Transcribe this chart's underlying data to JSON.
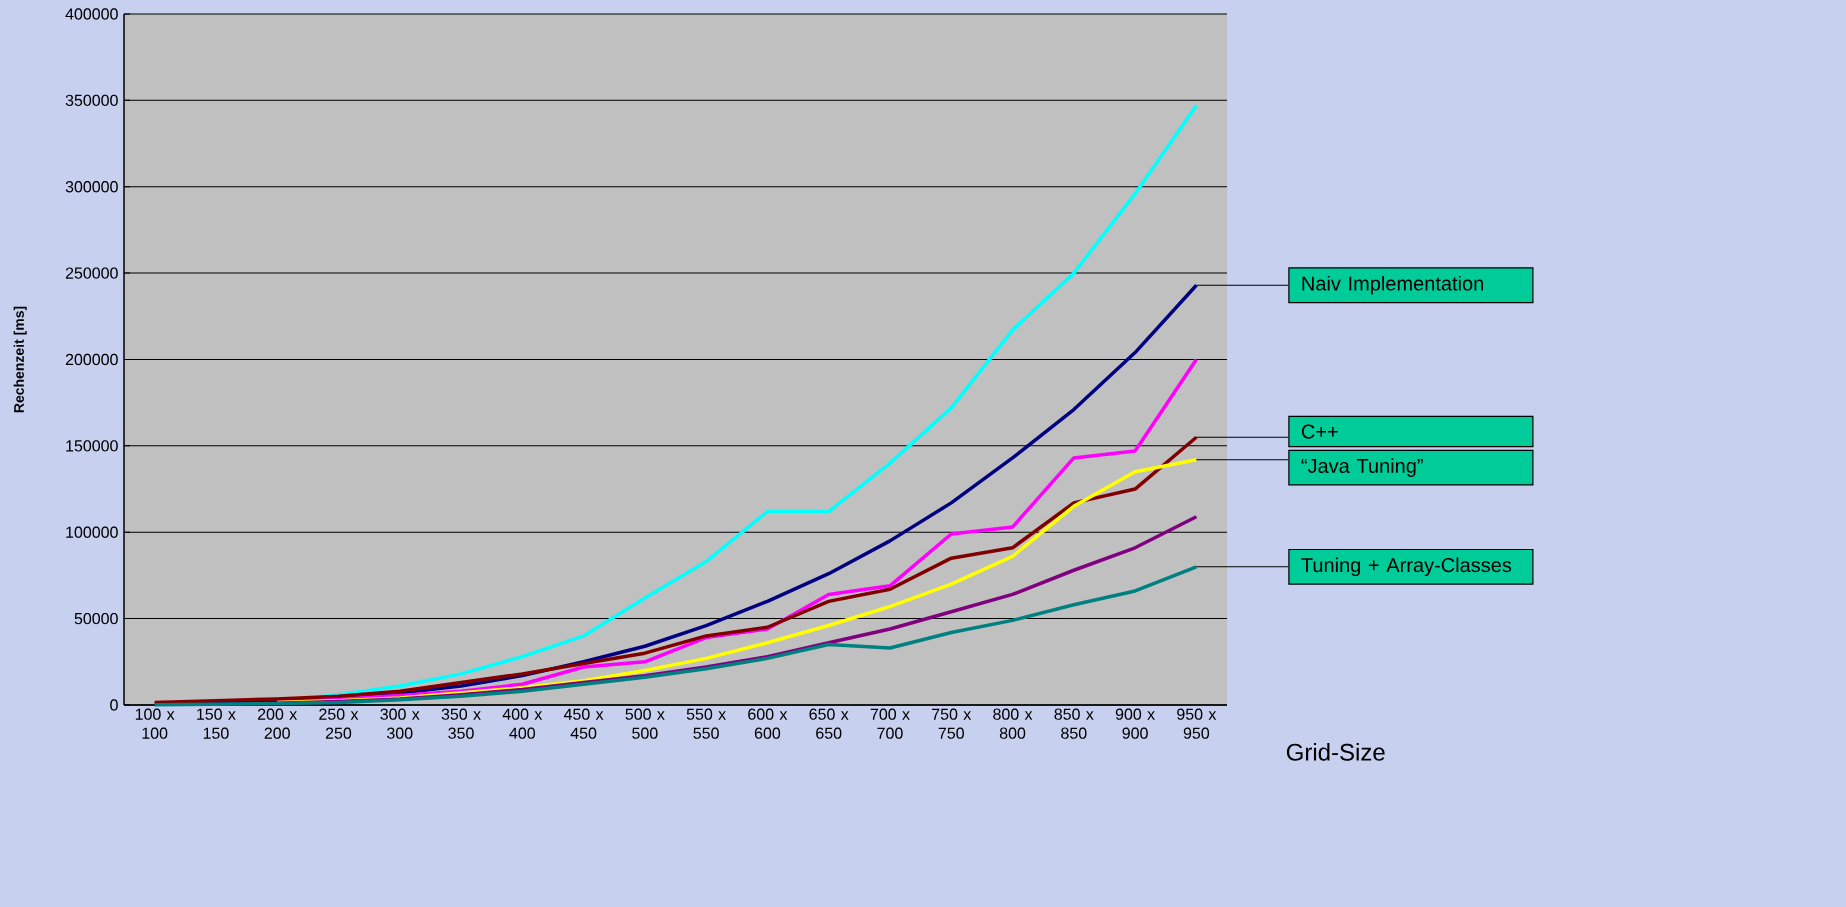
{
  "chart_data": {
    "type": "line",
    "xlabel": "Grid-Size",
    "ylabel": "Rechenzeit [ms]",
    "categories": [
      "100 x 100",
      "150 x 150",
      "200 x 200",
      "250 x 250",
      "300 x 300",
      "350 x 350",
      "400 x 400",
      "450 x 450",
      "500 x 500",
      "550 x 550",
      "600 x 600",
      "650 x 650",
      "700 x 700",
      "750 x 750",
      "800 x 800",
      "850 x 850",
      "900 x 900",
      "950 x 950"
    ],
    "series": [
      {
        "color": "#00ffff",
        "values": [
          null,
          null,
          2000,
          6000,
          11000,
          18000,
          28000,
          40000,
          62000,
          83000,
          112000,
          112000,
          140000,
          172000,
          217000,
          250000,
          296000,
          347000
        ]
      },
      {
        "color": "#000080",
        "values": [
          500,
          1000,
          2000,
          4500,
          7000,
          11000,
          17000,
          25000,
          34000,
          46000,
          60000,
          76000,
          95000,
          117000,
          143000,
          171000,
          204000,
          243000
        ]
      },
      {
        "color": "#ff00ff",
        "values": [
          null,
          null,
          2000,
          3500,
          5500,
          8000,
          12000,
          22000,
          25000,
          39000,
          44000,
          64000,
          69000,
          99000,
          103000,
          143000,
          147000,
          200000
        ]
      },
      {
        "color": "#800000",
        "values": [
          1500,
          2500,
          3500,
          5000,
          8000,
          13000,
          18000,
          24000,
          30000,
          40000,
          45000,
          60000,
          67000,
          85000,
          91000,
          117000,
          125000,
          155000
        ]
      },
      {
        "color": "#ffff00",
        "values": [
          null,
          null,
          1500,
          2500,
          4000,
          7000,
          10000,
          14000,
          20000,
          27000,
          36000,
          46000,
          57000,
          70000,
          86000,
          115000,
          135000,
          142000
        ]
      },
      {
        "color": "#800080",
        "values": [
          null,
          null,
          1000,
          2000,
          3500,
          6000,
          9000,
          13000,
          17000,
          22000,
          28000,
          36000,
          44000,
          54000,
          64000,
          78000,
          91000,
          109000
        ]
      },
      {
        "color": "#008080",
        "values": [
          200,
          500,
          800,
          1500,
          3000,
          5000,
          8000,
          12000,
          16000,
          21000,
          27000,
          35000,
          33000,
          42000,
          49000,
          58000,
          66000,
          80000
        ]
      }
    ],
    "ylim": [
      0,
      400000
    ],
    "yticks": [
      0,
      50000,
      100000,
      150000,
      200000,
      250000,
      300000,
      350000,
      400000
    ],
    "grid": "y",
    "marker": "none",
    "line_style": "solid",
    "annotations": [
      {
        "text": "Naiv Implementation",
        "x": "950 x 950",
        "y": 243000
      },
      {
        "text": "C++",
        "x": "950 x 950",
        "y": 155000
      },
      {
        "text": "“Java Tuning”",
        "x": "950 x 950",
        "y": 142000
      },
      {
        "text": "Tuning + Array-Classes",
        "x": "950 x 950",
        "y": 80000
      }
    ]
  }
}
